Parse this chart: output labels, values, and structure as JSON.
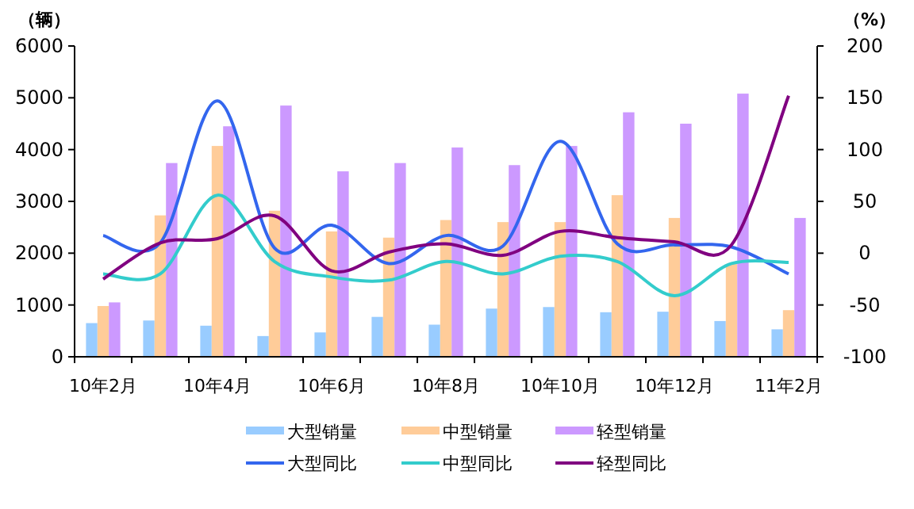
{
  "chart_data": {
    "type": "bar",
    "ylabel": "（辆）",
    "y2label": "（%）",
    "categories": [
      "10年2月",
      null,
      "10年4月",
      null,
      "10年6月",
      null,
      "10年8月",
      null,
      "10年10月",
      null,
      "10年12月",
      null,
      "11年2月"
    ],
    "series": [
      {
        "name": "大型销量",
        "color": "#99ccff",
        "values": [
          650,
          700,
          600,
          400,
          470,
          770,
          620,
          930,
          960,
          860,
          870,
          690,
          530
        ]
      },
      {
        "name": "中型销量",
        "color": "#ffcc99",
        "values": [
          980,
          2730,
          4070,
          2820,
          2420,
          2300,
          2640,
          2600,
          2600,
          3120,
          2680,
          1790,
          900
        ]
      },
      {
        "name": "轻型销量",
        "color": "#cc99ff",
        "values": [
          1050,
          3740,
          4450,
          4850,
          3580,
          3740,
          4040,
          3700,
          4070,
          4720,
          4500,
          5080,
          2680
        ]
      },
      {
        "name": "大型同比",
        "type": "line",
        "axis": "y2",
        "color": "#3366ee",
        "values": [
          17,
          10,
          147,
          5,
          27,
          -10,
          17,
          7,
          108,
          9,
          8,
          6,
          -20
        ]
      },
      {
        "name": "中型同比",
        "type": "line",
        "axis": "y2",
        "color": "#33cccc",
        "values": [
          -20,
          -20,
          56,
          -8,
          -23,
          -26,
          -8,
          -20,
          -3,
          -8,
          -41,
          -10,
          -9
        ]
      },
      {
        "name": "轻型同比",
        "type": "line",
        "axis": "y2",
        "color": "#800080",
        "values": [
          -25,
          10,
          14,
          36,
          -17,
          1,
          9,
          -2,
          21,
          15,
          11,
          8,
          152
        ]
      }
    ],
    "ylim": [
      0,
      6000
    ],
    "yticks": [
      0,
      1000,
      2000,
      3000,
      4000,
      5000,
      6000
    ],
    "y2lim": [
      -100,
      200
    ],
    "y2ticks": [
      -100,
      -50,
      0,
      50,
      100,
      150,
      200
    ],
    "grid": false,
    "legend": "bottom"
  }
}
